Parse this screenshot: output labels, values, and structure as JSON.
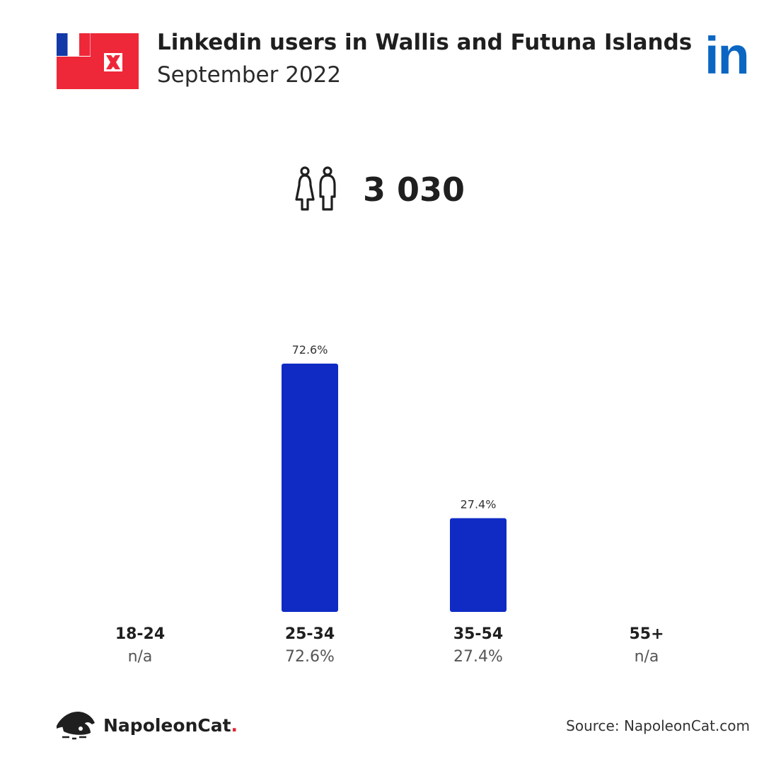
{
  "header": {
    "title": "Linkedin users in Wallis and Futuna Islands",
    "subtitle": "September 2022",
    "brand_logo_text": "in"
  },
  "total": {
    "icon": "people-icon",
    "value": "3 030"
  },
  "chart_data": {
    "type": "bar",
    "categories": [
      "18-24",
      "25-34",
      "35-54",
      "55+"
    ],
    "values": [
      null,
      72.6,
      27.4,
      null
    ],
    "bar_labels": [
      "",
      "72.6%",
      "27.4%",
      ""
    ],
    "category_values": [
      "n/a",
      "72.6%",
      "27.4%",
      "n/a"
    ],
    "ylim": [
      0,
      72.6
    ],
    "bar_color": "#0f2bc4",
    "grid": false
  },
  "footer": {
    "brand": "NapoleonCat",
    "brand_dot": ".",
    "source": "Source: NapoleonCat.com"
  },
  "colors": {
    "accent": "#0f2bc4",
    "linkedin": "#0a66c2",
    "flag_red": "#ee2839",
    "flag_blue": "#1339a8"
  }
}
